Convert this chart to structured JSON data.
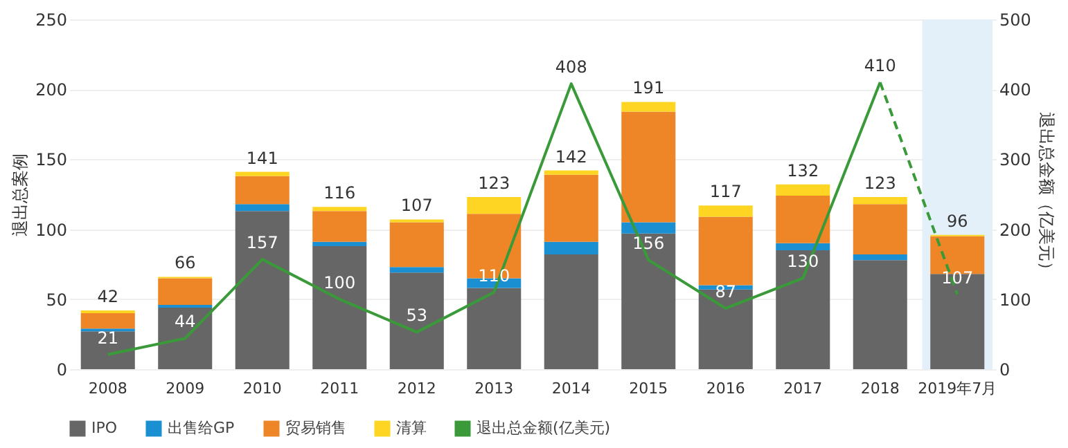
{
  "chart_data": {
    "type": "bar",
    "stacked": true,
    "ylabel": "退出总案例",
    "y2label": "退出总金额（亿美元）",
    "categories": [
      "2008",
      "2009",
      "2010",
      "2011",
      "2012",
      "2013",
      "2014",
      "2015",
      "2016",
      "2017",
      "2018",
      "2019年7月"
    ],
    "series": [
      {
        "name": "IPO",
        "color": "#666666",
        "values": [
          27,
          44,
          113,
          88,
          69,
          58,
          82,
          97,
          57,
          85,
          78,
          68
        ]
      },
      {
        "name": "出售给GP",
        "color": "#1a8fd1",
        "values": [
          2,
          2,
          5,
          3,
          4,
          7,
          9,
          8,
          3,
          5,
          4,
          0
        ]
      },
      {
        "name": "贸易销售",
        "color": "#ee8526",
        "values": [
          11,
          19,
          20,
          22,
          32,
          46,
          48,
          79,
          49,
          34,
          36,
          27
        ]
      },
      {
        "name": "清算",
        "color": "#fdd522",
        "values": [
          2,
          1,
          3,
          3,
          2,
          12,
          3,
          7,
          8,
          8,
          5,
          1
        ]
      },
      {
        "name": "退出总金额(亿美元)",
        "type": "line",
        "axis": "y2",
        "color": "#3a9a3a",
        "line_style": "solid",
        "values": [
          21,
          44,
          157,
          100,
          53,
          110,
          408,
          156,
          87,
          130,
          410,
          null
        ],
        "value_labels": [
          "21",
          "44",
          "157",
          "100",
          "53",
          "110",
          "408",
          "156",
          "87",
          "130",
          "410",
          null
        ]
      },
      {
        "type": "line",
        "axis": "y2",
        "color": "#3a9a3a",
        "line_style": "dashed",
        "values": [
          null,
          null,
          null,
          null,
          null,
          null,
          null,
          null,
          null,
          null,
          410,
          107
        ],
        "value_labels": [
          null,
          null,
          null,
          null,
          null,
          null,
          null,
          null,
          null,
          null,
          null,
          "107"
        ]
      }
    ],
    "totals": [
      "42",
      "66",
      "141",
      "116",
      "107",
      "123",
      "142",
      "191",
      "117",
      "132",
      "123",
      "96"
    ],
    "ylim": [
      0,
      250
    ],
    "yticks": [
      0,
      50,
      100,
      150,
      200,
      250
    ],
    "y2lim": [
      0,
      500
    ],
    "y2ticks": [
      0,
      100,
      200,
      300,
      400,
      500
    ],
    "bands": [
      {
        "axis": "x",
        "from": "2019年7月",
        "to": "2019年7月",
        "color": "#e3f0fa"
      }
    ],
    "grid": "y",
    "legend": "bottom"
  }
}
